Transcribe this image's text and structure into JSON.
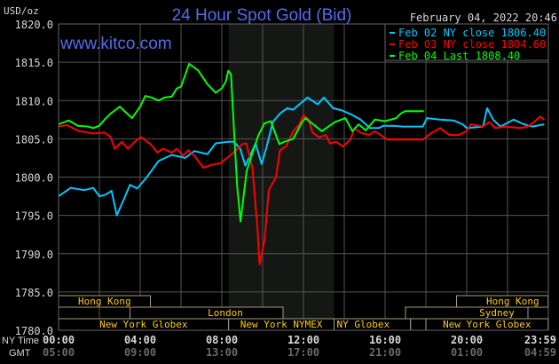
{
  "chart_data": {
    "type": "line",
    "title": "24 Hour Spot Gold (Bid)",
    "timestamp": "February 04, 2022 20:46",
    "watermark": "www.kitco.com",
    "ylabel": "USD/oz",
    "ylim": [
      1780,
      1820
    ],
    "yticks": [
      "1820.0",
      "1815.0",
      "1810.0",
      "1805.0",
      "1800.0",
      "1795.0",
      "1790.0",
      "1785.0",
      "1780.0"
    ],
    "xlim": [
      "00:00",
      "23:59"
    ],
    "grid": true,
    "legend_position": "top-right",
    "x_axis_rows": [
      {
        "label": "NY Time",
        "ticks": [
          "00:00",
          "04:00",
          "08:00",
          "12:00",
          "16:00",
          "20:00",
          "23:59"
        ]
      },
      {
        "label": "GMT",
        "ticks": [
          "05:00",
          "09:00",
          "13:00",
          "17:00",
          "21:00",
          "01:00",
          "04:59"
        ]
      }
    ],
    "shaded_period": [
      "08:20",
      "13:30"
    ],
    "sessions": [
      {
        "label": "Hong Kong",
        "row": 0,
        "start": "00:00",
        "end": "04:30"
      },
      {
        "label": "Hong Kong",
        "row": 0,
        "start": "19:30",
        "end": "23:59"
      },
      {
        "label": "London",
        "row": 1,
        "start": "03:30",
        "end": "11:00"
      },
      {
        "label": "Sydney",
        "row": 1,
        "start": "17:00",
        "end": "23:00"
      },
      {
        "label": "New York Globex",
        "row": 2,
        "start": "00:00",
        "end": "08:20"
      },
      {
        "label": "New York NYMEX",
        "row": 2,
        "start": "08:20",
        "end": "13:30"
      },
      {
        "label": "NY Globex",
        "row": 2,
        "start": "13:30",
        "end": "17:15"
      },
      {
        "label": "",
        "row": 2,
        "start": "17:15",
        "end": "18:00"
      },
      {
        "label": "New York Globex",
        "row": 2,
        "start": "18:00",
        "end": "23:59"
      }
    ],
    "series": [
      {
        "name": "Feb 02 NY close 1806.40",
        "color": "#00c8ff",
        "points": [
          [
            "00:00",
            1797.5
          ],
          [
            "00:36",
            1798.6
          ],
          [
            "01:15",
            1798.3
          ],
          [
            "01:42",
            1798.6
          ],
          [
            "02:00",
            1797.5
          ],
          [
            "02:18",
            1797.7
          ],
          [
            "02:36",
            1798.2
          ],
          [
            "02:51",
            1795.0
          ],
          [
            "03:12",
            1797.1
          ],
          [
            "03:30",
            1799.0
          ],
          [
            "03:51",
            1798.5
          ],
          [
            "04:18",
            1799.9
          ],
          [
            "04:54",
            1802.1
          ],
          [
            "05:33",
            1802.9
          ],
          [
            "06:12",
            1802.5
          ],
          [
            "06:39",
            1803.4
          ],
          [
            "07:18",
            1803.0
          ],
          [
            "07:42",
            1804.4
          ],
          [
            "08:18",
            1804.6
          ],
          [
            "08:36",
            1804.6
          ],
          [
            "08:54",
            1803.7
          ],
          [
            "09:09",
            1801.5
          ],
          [
            "09:24",
            1802.9
          ],
          [
            "09:39",
            1804.4
          ],
          [
            "09:57",
            1801.7
          ],
          [
            "10:12",
            1804.0
          ],
          [
            "10:30",
            1807.2
          ],
          [
            "10:51",
            1808.3
          ],
          [
            "11:12",
            1809.0
          ],
          [
            "11:30",
            1808.8
          ],
          [
            "11:48",
            1809.5
          ],
          [
            "12:12",
            1810.4
          ],
          [
            "12:42",
            1809.5
          ],
          [
            "13:00",
            1810.4
          ],
          [
            "13:27",
            1809.0
          ],
          [
            "13:54",
            1808.7
          ],
          [
            "14:24",
            1808.1
          ],
          [
            "14:48",
            1807.5
          ],
          [
            "15:15",
            1806.4
          ],
          [
            "15:42",
            1806.4
          ],
          [
            "15:54",
            1806.7
          ],
          [
            "16:21",
            1806.7
          ],
          [
            "16:54",
            1806.6
          ],
          [
            "17:51",
            1806.6
          ],
          [
            "18:03",
            1807.7
          ],
          [
            "18:42",
            1807.5
          ],
          [
            "19:21",
            1807.4
          ],
          [
            "19:48",
            1806.9
          ],
          [
            "20:00",
            1806.4
          ],
          [
            "20:48",
            1806.6
          ],
          [
            "21:00",
            1809.0
          ],
          [
            "21:18",
            1807.5
          ],
          [
            "21:39",
            1806.6
          ],
          [
            "22:18",
            1807.5
          ],
          [
            "22:48",
            1806.9
          ],
          [
            "23:12",
            1806.6
          ],
          [
            "23:48",
            1806.9
          ]
        ]
      },
      {
        "name": "Feb 03 NY close 1804.60",
        "color": "#ff0000",
        "points": [
          [
            "00:00",
            1806.6
          ],
          [
            "00:24",
            1806.8
          ],
          [
            "01:00",
            1806.0
          ],
          [
            "01:42",
            1805.7
          ],
          [
            "02:15",
            1805.8
          ],
          [
            "02:33",
            1805.2
          ],
          [
            "02:45",
            1803.7
          ],
          [
            "03:06",
            1804.6
          ],
          [
            "03:24",
            1803.7
          ],
          [
            "03:51",
            1804.9
          ],
          [
            "04:03",
            1805.2
          ],
          [
            "04:30",
            1804.3
          ],
          [
            "04:51",
            1803.2
          ],
          [
            "05:06",
            1803.7
          ],
          [
            "05:33",
            1803.2
          ],
          [
            "05:48",
            1803.7
          ],
          [
            "06:06",
            1802.8
          ],
          [
            "06:21",
            1803.5
          ],
          [
            "06:39",
            1802.8
          ],
          [
            "07:06",
            1801.2
          ],
          [
            "07:30",
            1801.6
          ],
          [
            "07:57",
            1801.8
          ],
          [
            "08:09",
            1802.3
          ],
          [
            "08:27",
            1802.9
          ],
          [
            "08:42",
            1803.5
          ],
          [
            "09:00",
            1804.3
          ],
          [
            "09:12",
            1804.4
          ],
          [
            "09:30",
            1801.2
          ],
          [
            "09:45",
            1793.1
          ],
          [
            "09:51",
            1788.6
          ],
          [
            "10:06",
            1791.9
          ],
          [
            "10:18",
            1798.3
          ],
          [
            "10:39",
            1800.0
          ],
          [
            "10:51",
            1803.5
          ],
          [
            "11:09",
            1804.0
          ],
          [
            "11:30",
            1806.0
          ],
          [
            "11:48",
            1806.9
          ],
          [
            "12:00",
            1808.1
          ],
          [
            "12:15",
            1807.5
          ],
          [
            "12:27",
            1805.8
          ],
          [
            "12:45",
            1805.2
          ],
          [
            "13:06",
            1805.5
          ],
          [
            "13:18",
            1804.4
          ],
          [
            "13:36",
            1804.6
          ],
          [
            "13:57",
            1804.0
          ],
          [
            "14:18",
            1804.9
          ],
          [
            "14:30",
            1806.4
          ],
          [
            "14:48",
            1805.8
          ],
          [
            "15:12",
            1805.5
          ],
          [
            "15:30",
            1806.0
          ],
          [
            "16:06",
            1804.9
          ],
          [
            "17:00",
            1804.9
          ],
          [
            "17:51",
            1804.9
          ],
          [
            "18:18",
            1805.8
          ],
          [
            "18:42",
            1806.4
          ],
          [
            "19:09",
            1805.5
          ],
          [
            "19:36",
            1805.5
          ],
          [
            "20:00",
            1806.0
          ],
          [
            "20:12",
            1806.9
          ],
          [
            "20:48",
            1806.6
          ],
          [
            "21:06",
            1807.2
          ],
          [
            "21:24",
            1806.4
          ],
          [
            "21:54",
            1806.6
          ],
          [
            "22:36",
            1806.4
          ],
          [
            "23:00",
            1806.6
          ],
          [
            "23:18",
            1807.2
          ],
          [
            "23:36",
            1807.9
          ],
          [
            "23:48",
            1807.5
          ]
        ]
      },
      {
        "name": "Feb 04 Last 1808.40",
        "color": "#00ff00",
        "points": [
          [
            "00:00",
            1806.9
          ],
          [
            "00:30",
            1807.4
          ],
          [
            "00:57",
            1806.7
          ],
          [
            "01:27",
            1806.6
          ],
          [
            "01:42",
            1806.4
          ],
          [
            "02:00",
            1806.7
          ],
          [
            "02:15",
            1807.5
          ],
          [
            "02:33",
            1808.3
          ],
          [
            "02:45",
            1808.7
          ],
          [
            "03:00",
            1809.2
          ],
          [
            "03:12",
            1808.7
          ],
          [
            "03:36",
            1807.7
          ],
          [
            "04:00",
            1809.2
          ],
          [
            "04:15",
            1810.6
          ],
          [
            "04:33",
            1810.4
          ],
          [
            "04:54",
            1810.0
          ],
          [
            "05:12",
            1810.4
          ],
          [
            "05:33",
            1810.5
          ],
          [
            "05:48",
            1811.6
          ],
          [
            "06:00",
            1811.8
          ],
          [
            "06:12",
            1813.3
          ],
          [
            "06:24",
            1814.8
          ],
          [
            "06:33",
            1814.5
          ],
          [
            "06:51",
            1813.9
          ],
          [
            "07:18",
            1812.1
          ],
          [
            "07:42",
            1811.0
          ],
          [
            "08:00",
            1811.6
          ],
          [
            "08:12",
            1812.5
          ],
          [
            "08:19",
            1813.9
          ],
          [
            "08:27",
            1813.4
          ],
          [
            "08:36",
            1806.0
          ],
          [
            "08:45",
            1798.8
          ],
          [
            "08:55",
            1794.2
          ],
          [
            "09:13",
            1800.8
          ],
          [
            "09:47",
            1805.4
          ],
          [
            "10:05",
            1807.0
          ],
          [
            "10:24",
            1807.3
          ],
          [
            "10:49",
            1804.3
          ],
          [
            "11:03",
            1804.6
          ],
          [
            "11:30",
            1805.0
          ],
          [
            "11:56",
            1807.2
          ],
          [
            "12:06",
            1807.7
          ],
          [
            "12:54",
            1806.0
          ],
          [
            "13:33",
            1807.2
          ],
          [
            "14:03",
            1807.7
          ],
          [
            "14:24",
            1806.0
          ],
          [
            "14:42",
            1806.9
          ],
          [
            "15:03",
            1806.1
          ],
          [
            "15:30",
            1807.5
          ],
          [
            "16:00",
            1807.3
          ],
          [
            "16:33",
            1807.7
          ],
          [
            "16:46",
            1808.3
          ],
          [
            "16:59",
            1808.6
          ],
          [
            "17:54",
            1808.6
          ]
        ]
      }
    ]
  }
}
